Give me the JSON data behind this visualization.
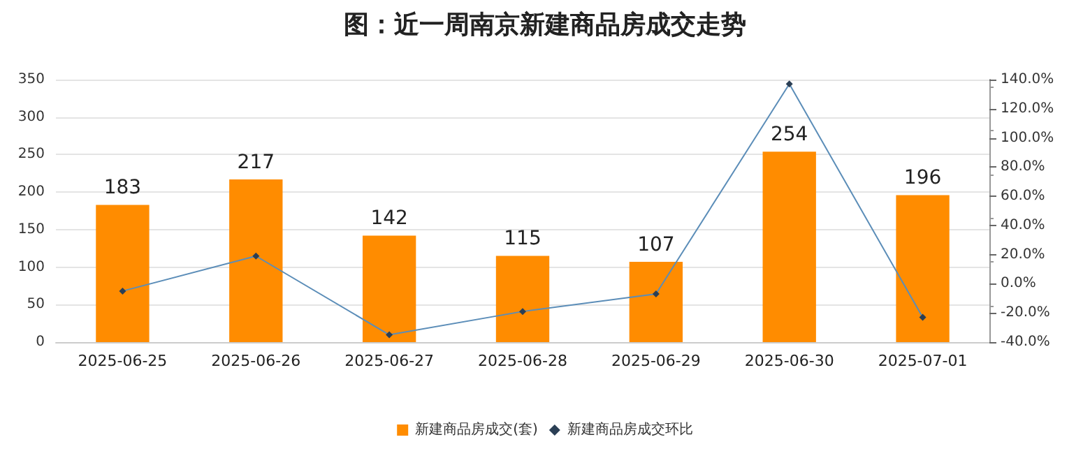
{
  "chart_data": {
    "type": "bar",
    "title": "图：近一周南京新建商品房成交走势",
    "categories": [
      "2025-06-25",
      "2025-06-26",
      "2025-06-27",
      "2025-06-28",
      "2025-06-29",
      "2025-06-30",
      "2025-07-01"
    ],
    "series": [
      {
        "name": "新建商品房成交(套)",
        "color": "#ff8c00",
        "values": [
          183,
          217,
          142,
          115,
          107,
          254,
          196
        ],
        "value_labels": [
          "183",
          "217",
          "142",
          "115",
          "107",
          "254",
          "196"
        ]
      },
      {
        "name": "新建商品房成交环比",
        "type": "line",
        "axis": "y2",
        "color": "#5b8db8",
        "marker": "diamond",
        "values": [
          -5,
          19,
          -35,
          -19,
          -7,
          137,
          -23
        ]
      }
    ],
    "ylim": [
      0,
      350
    ],
    "yticks": [
      0,
      50,
      100,
      150,
      200,
      250,
      300,
      350
    ],
    "y2lim": [
      -40,
      140
    ],
    "y2ticks": [
      {
        "value": -40,
        "label": "-40.0%"
      },
      {
        "value": -20,
        "label": "-20.0%"
      },
      {
        "value": 0,
        "label": "0.0%"
      },
      {
        "value": 20,
        "label": "20.0%"
      },
      {
        "value": 40,
        "label": "40.0%"
      },
      {
        "value": 60,
        "label": "60.0%"
      },
      {
        "value": 80,
        "label": "80.0%"
      },
      {
        "value": 100,
        "label": "100.0%"
      },
      {
        "value": 120,
        "label": "120.0%"
      },
      {
        "value": 140,
        "label": "140.0%"
      }
    ],
    "grid": "y",
    "legend": "bottom"
  }
}
